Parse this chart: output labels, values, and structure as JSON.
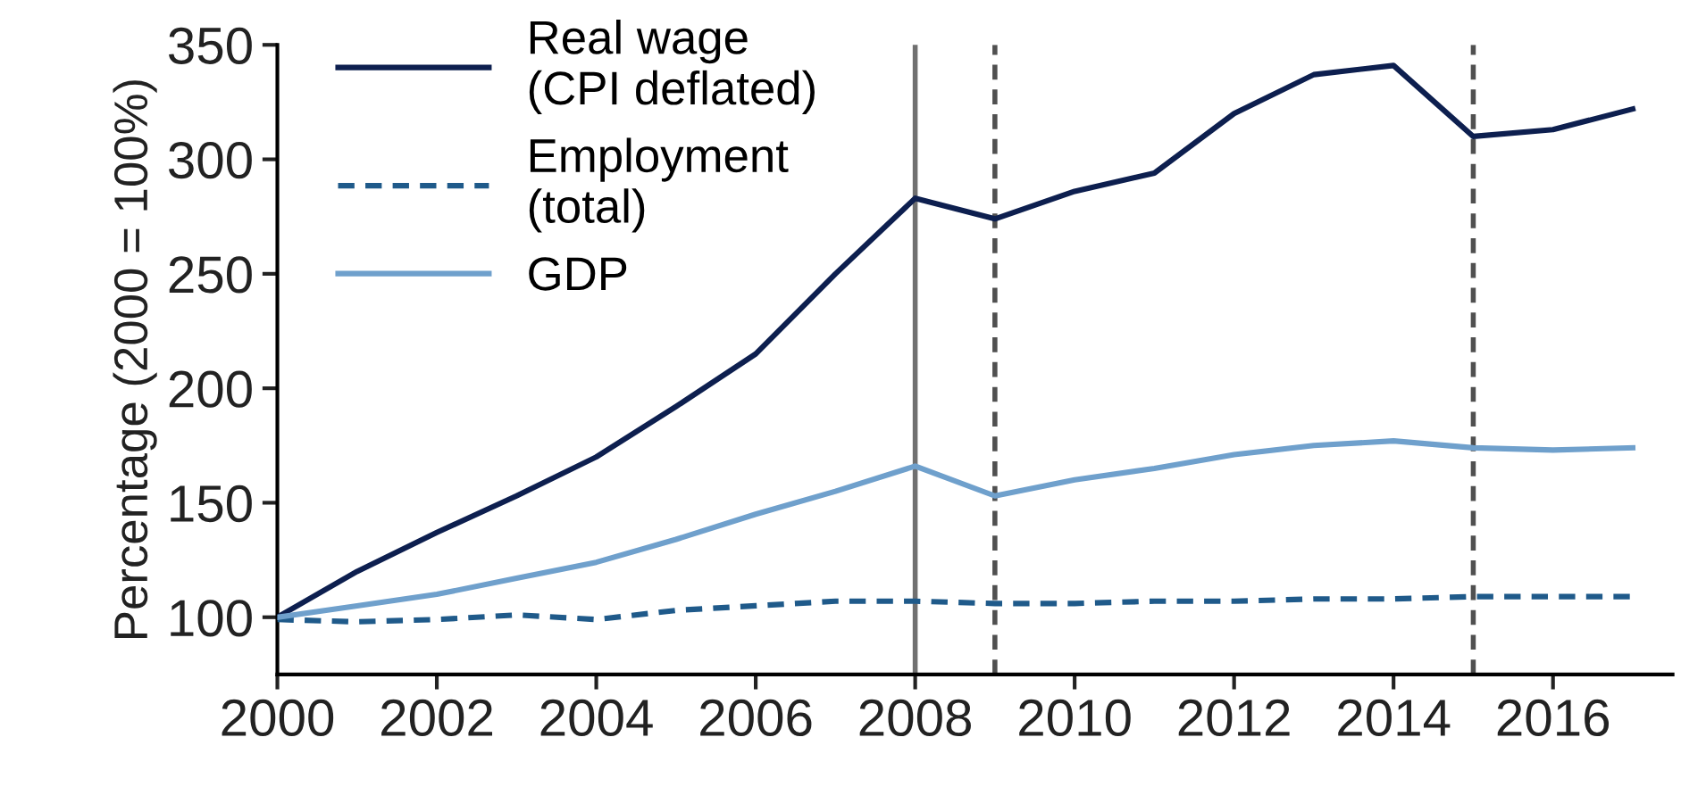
{
  "chart_data": {
    "type": "line",
    "ylabel": "Percentage (2000 = 100%)",
    "x": [
      2000,
      2001,
      2002,
      2003,
      2004,
      2005,
      2006,
      2007,
      2008,
      2009,
      2010,
      2011,
      2012,
      2013,
      2014,
      2015,
      2016,
      2017
    ],
    "series": [
      {
        "name": "Real wage\n(CPI deflated)",
        "color": "#0d1f4f",
        "line_style": "solid",
        "values": [
          100,
          120,
          137,
          153,
          170,
          192,
          215,
          250,
          283,
          274,
          286,
          294,
          320,
          337,
          341,
          310,
          313,
          322
        ]
      },
      {
        "name": "Employment\n(total)",
        "color": "#1f5a8a",
        "line_style": "dashed",
        "values": [
          99,
          98,
          99,
          101,
          99,
          103,
          105,
          107,
          107,
          106,
          106,
          107,
          107,
          108,
          108,
          109,
          109,
          109
        ]
      },
      {
        "name": "GDP",
        "color": "#6fa0cc",
        "line_style": "solid",
        "values": [
          100,
          105,
          110,
          117,
          124,
          134,
          145,
          155,
          166,
          153,
          160,
          165,
          171,
          175,
          177,
          174,
          173,
          174
        ]
      }
    ],
    "xlim": [
      2000,
      2017.5
    ],
    "ylim": [
      75,
      350
    ],
    "xticks": [
      2000,
      2002,
      2004,
      2006,
      2008,
      2010,
      2012,
      2014,
      2016
    ],
    "yticks": [
      100,
      150,
      200,
      250,
      300,
      350
    ],
    "ref_lines": [
      {
        "axis": "x",
        "value": 2008,
        "color": "#707070",
        "line_style": "solid"
      },
      {
        "axis": "x",
        "value": 2009,
        "color": "#505050",
        "line_style": "dashed"
      },
      {
        "axis": "x",
        "value": 2015,
        "color": "#505050",
        "line_style": "dashed"
      }
    ],
    "grid": false,
    "legend": "top left",
    "marker": "none"
  }
}
